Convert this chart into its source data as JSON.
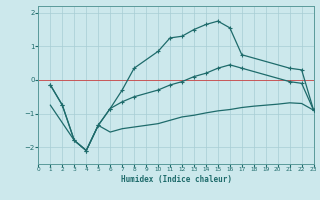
{
  "xlabel": "Humidex (Indice chaleur)",
  "bg_color": "#cce8ec",
  "grid_color": "#a8cdd4",
  "line_color": "#1e6b6b",
  "xlim": [
    0,
    23
  ],
  "ylim": [
    -2.5,
    2.2
  ],
  "yticks": [
    -2,
    -1,
    0,
    1,
    2
  ],
  "xticks": [
    0,
    1,
    2,
    3,
    4,
    5,
    6,
    7,
    8,
    9,
    10,
    11,
    12,
    13,
    14,
    15,
    16,
    17,
    18,
    19,
    20,
    21,
    22,
    23
  ],
  "line1_x": [
    1,
    2,
    3,
    4,
    5,
    6,
    7,
    8,
    10,
    11,
    12,
    13,
    14,
    15,
    16,
    17,
    21,
    22,
    23
  ],
  "line1_y": [
    -0.15,
    -0.75,
    -1.8,
    -2.1,
    -1.35,
    -0.85,
    -0.3,
    0.35,
    0.85,
    1.25,
    1.3,
    1.5,
    1.65,
    1.75,
    1.55,
    0.75,
    0.35,
    0.3,
    -0.9
  ],
  "line2_x": [
    1,
    2,
    3,
    4,
    5,
    6,
    7,
    8,
    10,
    11,
    12,
    13,
    14,
    15,
    16,
    17,
    21,
    22,
    23
  ],
  "line2_y": [
    -0.15,
    -0.75,
    -1.8,
    -2.1,
    -1.35,
    -0.85,
    -0.65,
    -0.5,
    -0.3,
    -0.15,
    -0.05,
    0.1,
    0.2,
    0.35,
    0.45,
    0.35,
    -0.05,
    -0.1,
    -0.9
  ],
  "line3_x": [
    1,
    3,
    4,
    5,
    6,
    7,
    8,
    9,
    10,
    11,
    12,
    13,
    14,
    15,
    16,
    17,
    18,
    19,
    20,
    21,
    22,
    23
  ],
  "line3_y": [
    -0.75,
    -1.8,
    -2.1,
    -1.35,
    -1.55,
    -1.45,
    -1.4,
    -1.35,
    -1.3,
    -1.2,
    -1.1,
    -1.05,
    -0.98,
    -0.92,
    -0.88,
    -0.82,
    -0.78,
    -0.75,
    -0.72,
    -0.68,
    -0.7,
    -0.9
  ]
}
